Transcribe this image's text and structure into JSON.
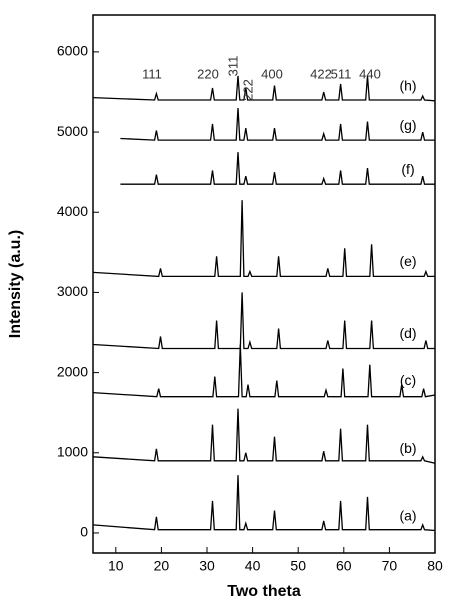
{
  "chart_data": {
    "type": "line",
    "x_label": "Two theta",
    "y_label": "Intensity (a.u.)",
    "xlim": [
      5,
      80
    ],
    "xticks": [
      10,
      20,
      30,
      40,
      50,
      60,
      70,
      80
    ],
    "ylim": [
      -250,
      6460
    ],
    "yticks": [
      0,
      1000,
      2000,
      3000,
      4000,
      5000,
      6000
    ],
    "annotations": [
      "111",
      "220",
      "311",
      "222",
      "400",
      "422",
      "511",
      "440"
    ],
    "series": [
      {
        "name": "(a)",
        "color": "#000000",
        "x": [
          5,
          18.5,
          18.9,
          19.3,
          30.8,
          31.2,
          31.6,
          36.4,
          36.8,
          37.2,
          38.1,
          38.5,
          38.9,
          44.4,
          44.8,
          45.2,
          55.2,
          55.6,
          56,
          58.9,
          59.3,
          59.7,
          64.8,
          65.2,
          65.6,
          76.9,
          77.3,
          77.7,
          80
        ],
        "values": [
          100,
          40,
          200,
          40,
          40,
          400,
          40,
          40,
          720,
          40,
          40,
          120,
          40,
          40,
          280,
          40,
          40,
          150,
          40,
          40,
          400,
          40,
          40,
          450,
          40,
          40,
          100,
          40,
          30
        ]
      },
      {
        "name": "(b)",
        "color": "#000000",
        "x": [
          5,
          18.5,
          18.9,
          19.3,
          30.8,
          31.2,
          31.6,
          36.4,
          36.8,
          37.2,
          38.1,
          38.5,
          38.9,
          44.4,
          44.8,
          45.2,
          55.2,
          55.6,
          56,
          58.9,
          59.3,
          59.7,
          64.8,
          65.2,
          65.6,
          76.9,
          77.3,
          77.7,
          80
        ],
        "values": [
          950,
          900,
          1050,
          900,
          900,
          1350,
          900,
          900,
          1550,
          900,
          900,
          1000,
          900,
          900,
          1200,
          900,
          900,
          1020,
          900,
          900,
          1300,
          900,
          900,
          1350,
          900,
          900,
          950,
          900,
          870
        ]
      },
      {
        "name": "(c)",
        "color": "#000000",
        "x": [
          5,
          19,
          19.4,
          19.8,
          31.3,
          31.7,
          32.1,
          36.9,
          37.3,
          37.7,
          38.6,
          39,
          39.4,
          44.9,
          45.3,
          45.7,
          55.7,
          56.1,
          56.5,
          59.4,
          59.8,
          60.2,
          65.3,
          65.7,
          66.1,
          72.3,
          72.7,
          73.1,
          77.1,
          77.5,
          77.9,
          80
        ],
        "values": [
          1750,
          1700,
          1800,
          1700,
          1700,
          1950,
          1700,
          1700,
          2350,
          1700,
          1700,
          1850,
          1700,
          1700,
          1900,
          1700,
          1700,
          1780,
          1700,
          1700,
          2050,
          1700,
          1700,
          2100,
          1700,
          1700,
          1850,
          1700,
          1700,
          1800,
          1700,
          1720
        ]
      },
      {
        "name": "(d)",
        "color": "#000000",
        "x": [
          5,
          19.4,
          19.8,
          20.2,
          31.7,
          32.1,
          32.5,
          37.3,
          37.7,
          38.1,
          39,
          39.4,
          39.8,
          45.3,
          45.7,
          46.1,
          56.1,
          56.5,
          56.9,
          59.8,
          60.2,
          60.6,
          65.7,
          66.1,
          66.5,
          77.6,
          78,
          78.4,
          80
        ],
        "values": [
          2350,
          2300,
          2450,
          2300,
          2300,
          2650,
          2300,
          2300,
          3000,
          2300,
          2300,
          2380,
          2300,
          2300,
          2550,
          2300,
          2300,
          2400,
          2300,
          2300,
          2650,
          2300,
          2300,
          2650,
          2300,
          2300,
          2400,
          2300,
          2300
        ]
      },
      {
        "name": "(e)",
        "color": "#000000",
        "x": [
          5,
          19.4,
          19.8,
          20.2,
          31.7,
          32.1,
          32.5,
          37.3,
          37.7,
          38.1,
          39,
          39.4,
          39.8,
          45.3,
          45.7,
          46.1,
          56.1,
          56.5,
          56.9,
          59.8,
          60.2,
          60.6,
          65.7,
          66.1,
          66.5,
          77.6,
          78,
          78.4,
          80
        ],
        "values": [
          3250,
          3200,
          3300,
          3200,
          3200,
          3450,
          3200,
          3200,
          4150,
          3200,
          3200,
          3260,
          3200,
          3200,
          3450,
          3200,
          3200,
          3300,
          3200,
          3200,
          3550,
          3200,
          3200,
          3600,
          3200,
          3200,
          3260,
          3200,
          3200
        ]
      },
      {
        "name": "(f)",
        "color": "#000000",
        "x": [
          11,
          18.5,
          18.9,
          19.3,
          30.8,
          31.2,
          31.6,
          36.4,
          36.8,
          37.2,
          38.1,
          38.5,
          38.9,
          44.4,
          44.8,
          45.2,
          55.2,
          55.6,
          56,
          58.9,
          59.3,
          59.7,
          64.8,
          65.2,
          65.6,
          76.9,
          77.3,
          77.7,
          80
        ],
        "values": [
          4350,
          4350,
          4470,
          4350,
          4350,
          4520,
          4350,
          4350,
          4750,
          4350,
          4350,
          4450,
          4350,
          4350,
          4500,
          4350,
          4350,
          4420,
          4350,
          4350,
          4520,
          4350,
          4350,
          4550,
          4350,
          4350,
          4450,
          4350,
          4350
        ]
      },
      {
        "name": "(g)",
        "color": "#000000",
        "x": [
          11,
          18.5,
          18.9,
          19.3,
          30.8,
          31.2,
          31.6,
          36.4,
          36.8,
          37.2,
          38.1,
          38.5,
          38.9,
          44.4,
          44.8,
          45.2,
          55.2,
          55.6,
          56,
          58.9,
          59.3,
          59.7,
          64.8,
          65.2,
          65.6,
          76.9,
          77.3,
          77.7,
          80
        ],
        "values": [
          4920,
          4900,
          5020,
          4900,
          4900,
          5100,
          4900,
          4900,
          5300,
          4900,
          4900,
          5050,
          4900,
          4900,
          5050,
          4900,
          4900,
          4980,
          4900,
          4900,
          5100,
          4900,
          4900,
          5130,
          4900,
          4900,
          5000,
          4900,
          4900
        ]
      },
      {
        "name": "(h)",
        "color": "#000000",
        "x": [
          5,
          18.5,
          18.9,
          19.3,
          30.8,
          31.2,
          31.6,
          36.4,
          36.8,
          37.2,
          38.1,
          38.5,
          38.9,
          44.4,
          44.8,
          45.2,
          55.2,
          55.6,
          56,
          58.9,
          59.3,
          59.7,
          64.8,
          65.2,
          65.6,
          76.9,
          77.3,
          77.7,
          80
        ],
        "values": [
          5430,
          5400,
          5480,
          5400,
          5400,
          5550,
          5400,
          5400,
          5700,
          5400,
          5400,
          5550,
          5400,
          5400,
          5580,
          5400,
          5400,
          5500,
          5400,
          5400,
          5600,
          5400,
          5400,
          5700,
          5400,
          5400,
          5450,
          5400,
          5390
        ]
      }
    ]
  }
}
